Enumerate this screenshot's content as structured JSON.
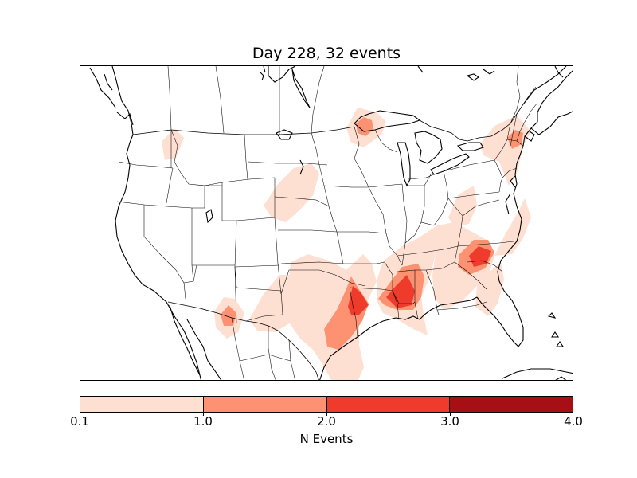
{
  "title": "Day 228, 32 events",
  "colorbar": {
    "label": "N Events",
    "ticks": [
      "0.1",
      "1.0",
      "2.0",
      "3.0",
      "4.0"
    ],
    "levels": [
      {
        "range": [
          0.1,
          1.0
        ],
        "color": "#fee0d2"
      },
      {
        "range": [
          1.0,
          2.0
        ],
        "color": "#fc9272"
      },
      {
        "range": [
          2.0,
          3.0
        ],
        "color": "#ef3b2c"
      },
      {
        "range": [
          3.0,
          4.0
        ],
        "color": "#a50f15"
      }
    ]
  },
  "map": {
    "region": "North America (contiguous US)",
    "projection": "Lambert Conformal",
    "features": [
      "coastlines",
      "country borders",
      "state borders"
    ]
  }
}
